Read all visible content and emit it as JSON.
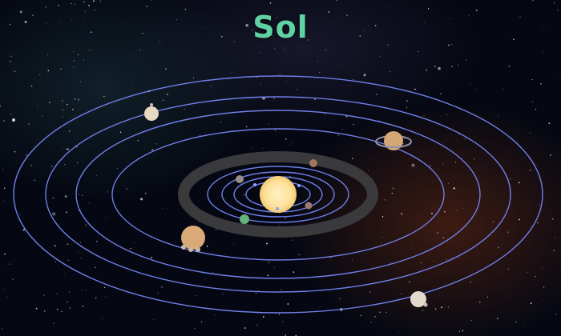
{
  "title": "Sol",
  "colors": {
    "title": "#5fd1a2",
    "orbit": "#6f7fe8",
    "asteroid_belt": "#3a3a3c",
    "sun": "#fde19a",
    "space": "#050812"
  },
  "bodies": [
    {
      "name": "sun",
      "color": "#fde19a"
    },
    {
      "name": "mercury",
      "color": "#9a8e88"
    },
    {
      "name": "venus",
      "color": "#a27760"
    },
    {
      "name": "earth",
      "color": "#67b27c"
    },
    {
      "name": "mars",
      "color": "#9b7c73"
    },
    {
      "name": "jupiter",
      "color": "#d9a977"
    },
    {
      "name": "saturn",
      "color": "#d4a777"
    },
    {
      "name": "uranus",
      "color": "#e8d9c2"
    },
    {
      "name": "neptune",
      "color": "#e4d9cc"
    }
  ]
}
